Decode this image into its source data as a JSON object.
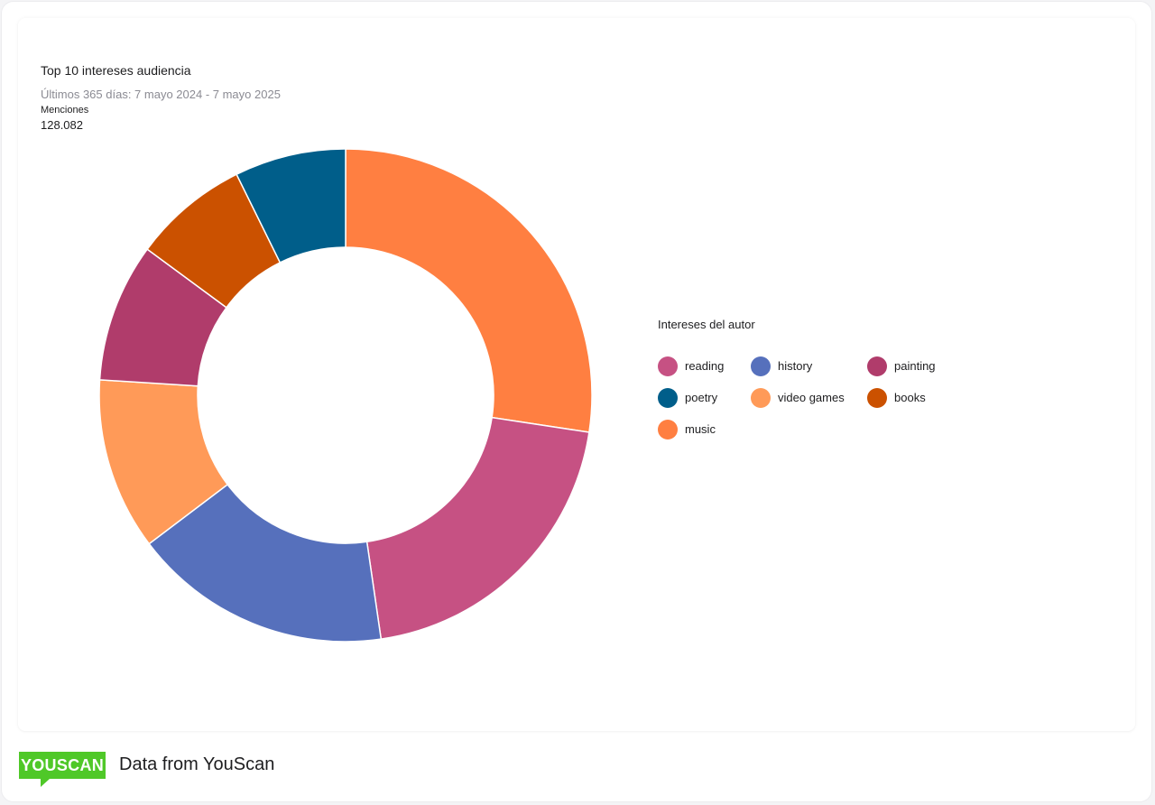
{
  "chart_data": {
    "type": "pie",
    "title": "Top 10 intereses audiencia",
    "subtitle": "Últimos 365 días: 7 mayo 2024 - 7 mayo 2025",
    "metric_label": "Menciones",
    "metric_value": "128.082",
    "legend_title": "Intereses del autor",
    "legend_placement": "right",
    "donut": true,
    "slices": [
      {
        "label": "music",
        "value": 27.4,
        "color": "#ff7f41"
      },
      {
        "label": "reading",
        "value": 20.3,
        "color": "#c65183"
      },
      {
        "label": "history",
        "value": 17.0,
        "color": "#5670bc"
      },
      {
        "label": "video games",
        "value": 11.3,
        "color": "#ff9a58"
      },
      {
        "label": "painting",
        "value": 9.1,
        "color": "#b03c6b"
      },
      {
        "label": "books",
        "value": 7.6,
        "color": "#cb5100"
      },
      {
        "label": "poetry",
        "value": 7.3,
        "color": "#005e8a"
      }
    ],
    "legend_order": [
      "reading",
      "history",
      "painting",
      "poetry",
      "video games",
      "books",
      "music"
    ]
  },
  "footer": {
    "logo_text": "YOUSCAN",
    "text": "Data from YouScan",
    "logo_color": "#4fc828"
  }
}
